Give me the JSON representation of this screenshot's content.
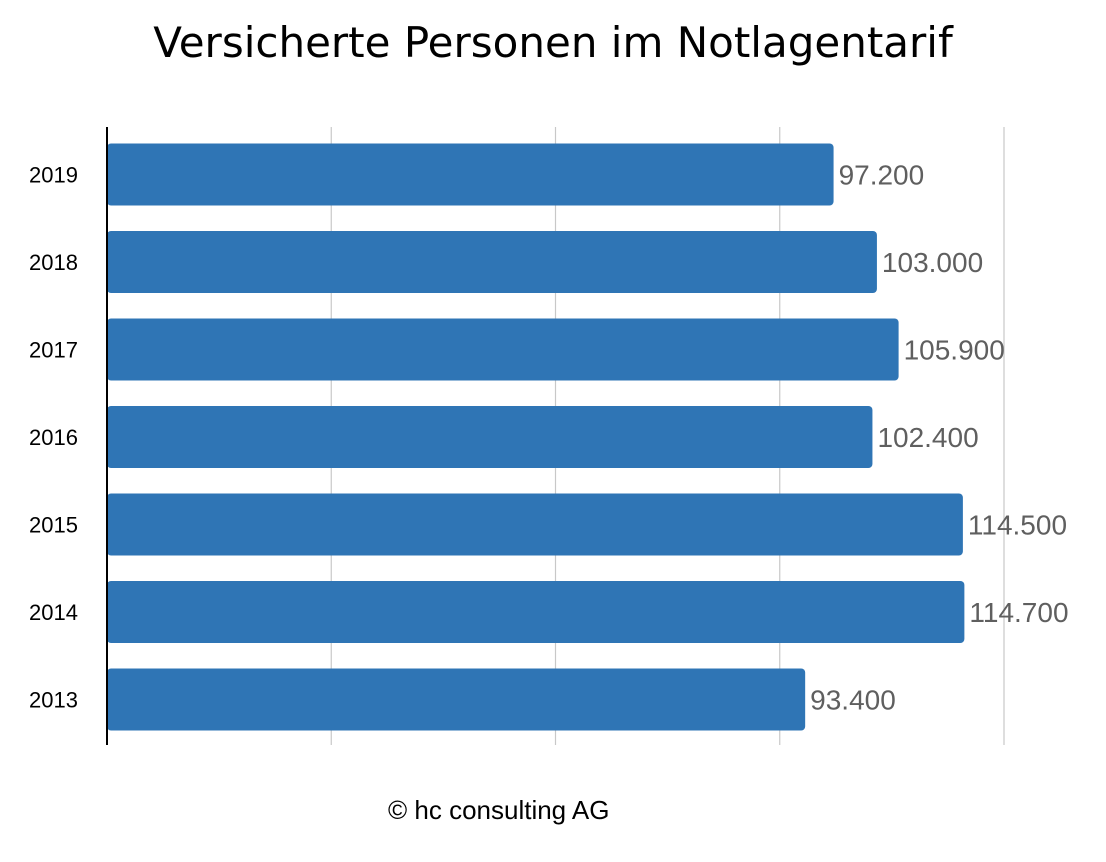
{
  "chart_data": {
    "type": "bar",
    "orientation": "horizontal",
    "title": "Versicherte Personen im Notlagentarif",
    "categories": [
      "2019",
      "2018",
      "2017",
      "2016",
      "2015",
      "2014",
      "2013"
    ],
    "values": [
      97200,
      103000,
      105900,
      102400,
      114500,
      114700,
      93400
    ],
    "value_labels": [
      "97.200",
      "103.000",
      "105.900",
      "102.400",
      "114.500",
      "114.700",
      "93.400"
    ],
    "xlim": [
      0,
      120000
    ],
    "grid": true,
    "bar_color": "#2f75b5",
    "label_color": "#5f5f5f",
    "xlabel": "",
    "ylabel": ""
  },
  "footer": {
    "credit": "© hc consulting AG"
  }
}
